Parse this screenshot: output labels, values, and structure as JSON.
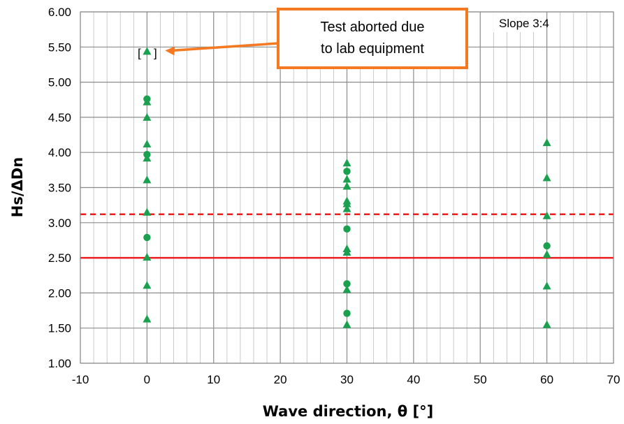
{
  "chart_data": {
    "type": "scatter",
    "xlabel": "Wave direction, θ [°]",
    "ylabel": "Hs/ΔDn",
    "xlim": [
      -10,
      70
    ],
    "ylim": [
      1.0,
      6.0
    ],
    "x_ticks": [
      "-10",
      "0",
      "10",
      "20",
      "30",
      "40",
      "50",
      "60",
      "70"
    ],
    "y_ticks": [
      "1.00",
      "1.50",
      "2.00",
      "2.50",
      "3.00",
      "3.50",
      "4.00",
      "4.50",
      "5.00",
      "5.50",
      "6.00"
    ],
    "grid": "major and minor",
    "series": [
      {
        "marker": "triangle",
        "color": "#1aa04f",
        "points": [
          {
            "x": 0,
            "y": 1.63
          },
          {
            "x": 0,
            "y": 2.11
          },
          {
            "x": 0,
            "y": 2.51
          },
          {
            "x": 0,
            "y": 3.15
          },
          {
            "x": 0,
            "y": 3.61
          },
          {
            "x": 0,
            "y": 3.92
          },
          {
            "x": 0,
            "y": 4.12
          },
          {
            "x": 0,
            "y": 4.5
          },
          {
            "x": 0,
            "y": 4.72
          },
          {
            "x": 0,
            "y": 5.44
          },
          {
            "x": 30,
            "y": 1.55
          },
          {
            "x": 30,
            "y": 2.05
          },
          {
            "x": 30,
            "y": 2.58
          },
          {
            "x": 30,
            "y": 2.63
          },
          {
            "x": 30,
            "y": 3.2
          },
          {
            "x": 30,
            "y": 3.27
          },
          {
            "x": 30,
            "y": 3.31
          },
          {
            "x": 30,
            "y": 3.52
          },
          {
            "x": 30,
            "y": 3.62
          },
          {
            "x": 30,
            "y": 3.85
          },
          {
            "x": 60,
            "y": 1.55
          },
          {
            "x": 60,
            "y": 2.1
          },
          {
            "x": 60,
            "y": 2.55
          },
          {
            "x": 60,
            "y": 3.1
          },
          {
            "x": 60,
            "y": 3.64
          },
          {
            "x": 60,
            "y": 4.14
          }
        ]
      },
      {
        "marker": "circle",
        "color": "#1aa04f",
        "points": [
          {
            "x": 0,
            "y": 2.79
          },
          {
            "x": 0,
            "y": 3.97
          },
          {
            "x": 0,
            "y": 4.76
          },
          {
            "x": 30,
            "y": 1.71
          },
          {
            "x": 30,
            "y": 2.13
          },
          {
            "x": 30,
            "y": 2.91
          },
          {
            "x": 30,
            "y": 3.73
          },
          {
            "x": 60,
            "y": 2.67
          }
        ]
      }
    ],
    "reference_lines": [
      {
        "y": 3.12,
        "color": "#ee1c1c",
        "style": "dashed"
      },
      {
        "y": 2.5,
        "color": "#ee1c1c",
        "style": "solid"
      }
    ],
    "bracketed_point": {
      "x": 0,
      "y": 5.44,
      "bracket_left": "[",
      "bracket_right": "]"
    },
    "annotations": {
      "callout_lines": [
        "Test aborted due",
        "to lab equipment"
      ],
      "callout_border_color": "#f47920",
      "arrow_target": {
        "x": 0,
        "y": 5.44
      },
      "slope_label": "Slope 3:4"
    }
  }
}
